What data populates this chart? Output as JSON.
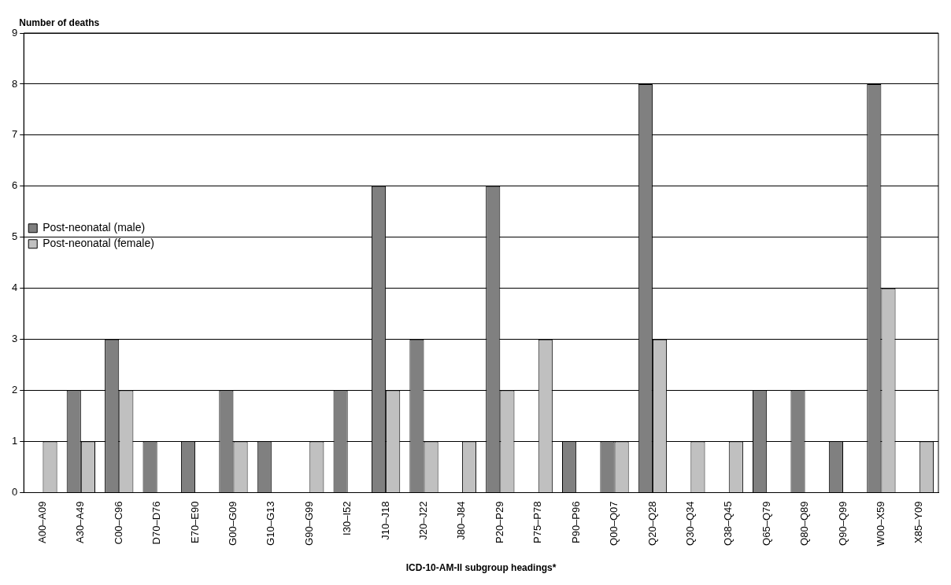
{
  "chart_data": {
    "type": "bar",
    "xlabel": "ICD-10-AM-II subgroup headings*",
    "ylabel": "Number of deaths",
    "categories": [
      "A00–A09",
      "A30–A49",
      "C00–C96",
      "D70–D76",
      "E70–E90",
      "G00–G09",
      "G10–G13",
      "G90–G99",
      "I30–I52",
      "J10–J18",
      "J20–J22",
      "J80–J84",
      "P20–P29",
      "P75–P78",
      "P90–P96",
      "Q00–Q07",
      "Q20–Q28",
      "Q30–Q34",
      "Q38–Q45",
      "Q65–Q79",
      "Q80–Q89",
      "Q90–Q99",
      "W00–X59",
      "X85–Y09"
    ],
    "series": [
      {
        "name": "Post-neonatal (male)",
        "color": "#808080",
        "values": [
          0,
          2,
          3,
          1,
          1,
          2,
          1,
          0,
          2,
          6,
          3,
          0,
          6,
          0,
          1,
          1,
          8,
          0,
          0,
          2,
          2,
          1,
          8,
          0
        ]
      },
      {
        "name": "Post-neonatal (female)",
        "color": "#c0c0c0",
        "values": [
          1,
          1,
          2,
          0,
          0,
          1,
          0,
          1,
          0,
          2,
          1,
          1,
          2,
          3,
          0,
          1,
          3,
          1,
          1,
          0,
          0,
          0,
          4,
          1
        ]
      }
    ],
    "ylim": [
      0,
      9
    ],
    "yticks": [
      0,
      1,
      2,
      3,
      4,
      5,
      6,
      7,
      8,
      9
    ],
    "grid": "y",
    "legend": "top"
  }
}
